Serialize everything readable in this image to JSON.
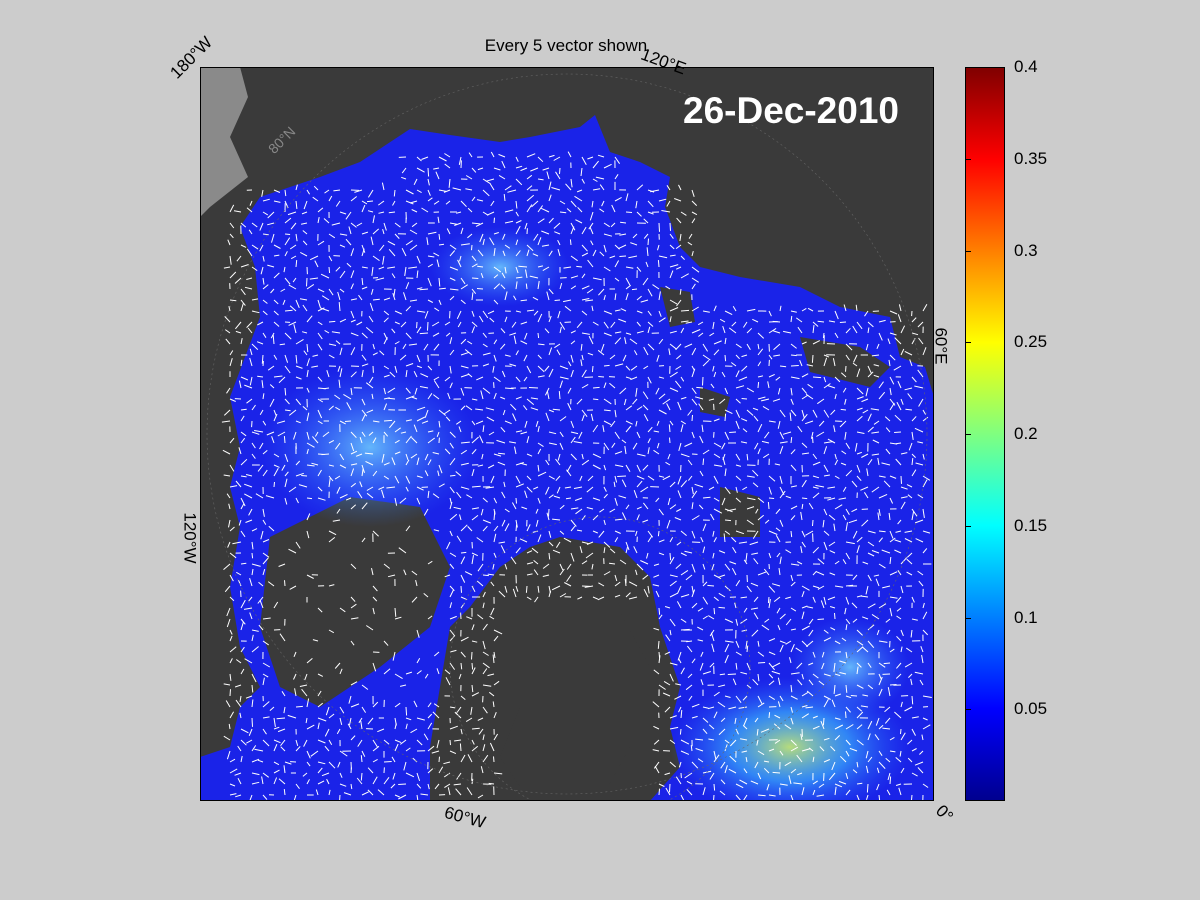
{
  "figure": {
    "title": "Every 5 vector shown",
    "date": "26-Dec-2010",
    "longitude_labels": [
      "180°W",
      "120°E",
      "60°E",
      "0°",
      "60°W",
      "120°W"
    ],
    "latitude_label": "80°N"
  },
  "colorbar": {
    "ticks": [
      "0.4",
      "0.35",
      "0.3",
      "0.25",
      "0.2",
      "0.15",
      "0.1",
      "0.05"
    ],
    "tick_values": [
      0.4,
      0.35,
      0.3,
      0.25,
      0.2,
      0.15,
      0.1,
      0.05
    ],
    "range": [
      0,
      0.4
    ],
    "colormap": "jet"
  },
  "colors": {
    "background": "#cccccc",
    "land": "#3a3a3a",
    "outside": "#8a8a8a",
    "ice_field": "#1a23e8",
    "vector": "#ffffff"
  }
}
